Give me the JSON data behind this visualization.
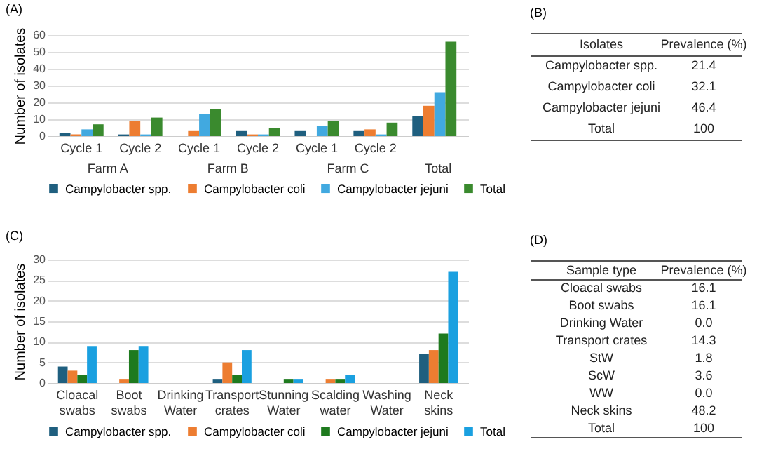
{
  "chart_data": [
    {
      "type": "bar",
      "title": "(A)",
      "ylabel": "Number of isolates",
      "categories": [
        "Cycle 1",
        "Cycle 2",
        "Cycle 1",
        "Cycle 2",
        "Cycle 1",
        "Cycle 2",
        null
      ],
      "annotations": [
        "Farm A",
        "Farm B",
        "Farm C",
        "Total"
      ],
      "ylim": [
        0,
        60
      ],
      "yticks": [
        0,
        10,
        20,
        30,
        40,
        50,
        60
      ],
      "grid": "y",
      "legend": "bottom",
      "series": [
        {
          "name": "Campylobacter spp.",
          "color": "#1f5f7f",
          "values": [
            2,
            1,
            0,
            3,
            3,
            3,
            12
          ]
        },
        {
          "name": "Campylobacter coli",
          "color": "#ed7d31",
          "values": [
            1,
            9,
            3,
            1,
            0,
            4,
            18
          ]
        },
        {
          "name": "Campylobacter jejuni",
          "color": "#41a9e0",
          "values": [
            4,
            1,
            13,
            1,
            6,
            1,
            26
          ]
        },
        {
          "name": "Total",
          "color": "#3a8a2e",
          "values": [
            7,
            11,
            16,
            5,
            9,
            8,
            56
          ]
        }
      ]
    },
    {
      "type": "other",
      "title": "(B)",
      "xlabel": "Isolates",
      "ylabel": "Prevalence (%)",
      "categories": [
        "Campylobacter spp.",
        "Campylobacter coli",
        "Campylobacter jejuni",
        "Total"
      ],
      "value_labels": [
        "21.4",
        "32.1",
        "46.4",
        "100"
      ]
    },
    {
      "type": "bar",
      "title": "(C)",
      "ylabel": "Number of isolates",
      "categories": [
        "Cloacal swabs",
        "Boot swabs",
        "Drinking Water",
        "Transport crates",
        "Stunning Water",
        "Scalding water",
        "Washing Water",
        "Neck skins"
      ],
      "ylim": [
        0,
        30
      ],
      "yticks": [
        0,
        5,
        10,
        15,
        20,
        25,
        30
      ],
      "grid": "y",
      "legend": "bottom",
      "series": [
        {
          "name": "Campylobacter spp.",
          "color": "#1f5f7f",
          "values": [
            4,
            0,
            0,
            1,
            0,
            0,
            0,
            7
          ]
        },
        {
          "name": "Campylobacter coli",
          "color": "#ed7d31",
          "values": [
            3,
            1,
            0,
            5,
            0,
            1,
            0,
            8
          ]
        },
        {
          "name": "Campylobacter jejuni",
          "color": "#1e7a1e",
          "values": [
            2,
            8,
            0,
            2,
            1,
            1,
            0,
            12
          ]
        },
        {
          "name": "Total",
          "color": "#1aa0e0",
          "values": [
            9,
            9,
            0,
            8,
            1,
            2,
            0,
            27
          ]
        }
      ]
    },
    {
      "type": "other",
      "title": "(D)",
      "xlabel": "Sample type",
      "ylabel": "Prevalence (%)",
      "categories": [
        "Cloacal swabs",
        "Boot swabs",
        "Drinking Water",
        "Transport crates",
        "StW",
        "ScW",
        "WW",
        "Neck skins",
        "Total"
      ],
      "value_labels": [
        "16.1",
        "16.1",
        "0.0",
        "14.3",
        "1.8",
        "3.6",
        "0.0",
        "48.2",
        "100"
      ]
    }
  ]
}
